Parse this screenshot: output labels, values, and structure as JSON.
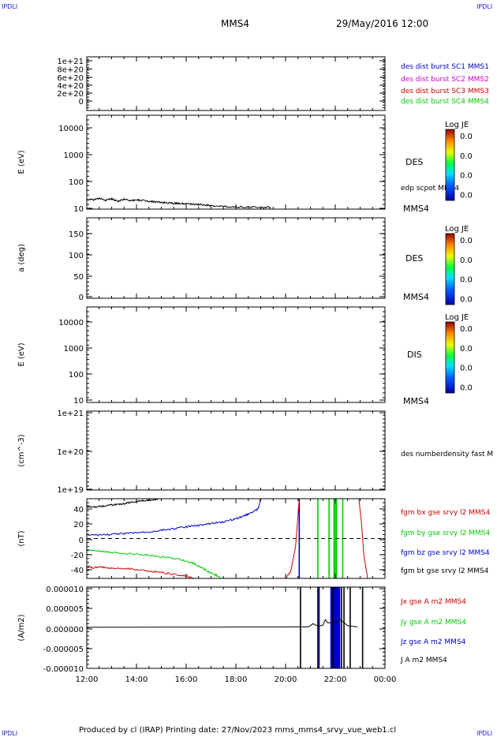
{
  "corners": {
    "tl": "IPDLI",
    "tr": "IPDLI",
    "bl": "IPDLI",
    "br": "IPDLI"
  },
  "header": {
    "spacecraft": "MMS4",
    "datetime": "29/May/2016 12:00"
  },
  "footer": {
    "text": "Produced by cl (IRAP)   Printing date: 27/Nov/2023   mms_mms4_srvy_vue_web1.cl"
  },
  "colors": {
    "black": "#000000",
    "blue": "#0000cc",
    "magenta": "#cc00cc",
    "red": "#cc0000",
    "green": "#00cc00"
  },
  "chart_data": [
    {
      "id": "p1",
      "type": "line",
      "yticks": [
        "1e+21",
        "8e+20",
        "6e+20",
        "4e+20",
        "2e+20",
        "0"
      ],
      "ylim": [
        0,
        1e+21
      ],
      "legend": [
        {
          "text": "des dist burst SC1 MMS1",
          "color": "#0000cc"
        },
        {
          "text": "des dist burst SC2 MMS2",
          "color": "#cc00cc"
        },
        {
          "text": "des dist burst SC3 MMS3",
          "color": "#cc0000"
        },
        {
          "text": "des dist burst SC4 MMS4",
          "color": "#00cc00"
        }
      ],
      "zero_line": true
    },
    {
      "id": "p2",
      "type": "heatmap",
      "ylabel": "E (eV)",
      "scale": "log",
      "ylim": [
        10,
        20000
      ],
      "yticks": [
        "10000",
        "1000",
        "100",
        "10"
      ],
      "name": "DES",
      "overlay_label": "edp scpot MMS4",
      "sc_label": "MMS4",
      "colorbar": {
        "title": "Log JE",
        "values": [
          "0.0",
          "0.0",
          "0.0",
          "0.0"
        ]
      },
      "series": [
        {
          "name": "edp scpot MMS4",
          "color": "#000000",
          "x": [
            12.0,
            12.25,
            12.5,
            12.75,
            13.0,
            13.25,
            13.5,
            13.75,
            14.0,
            14.25,
            14.5,
            14.75,
            15.0,
            15.25,
            15.5,
            15.75,
            16.0,
            16.25,
            16.5,
            16.75,
            17.0,
            17.5,
            18.0,
            18.5,
            19.0,
            19.4
          ],
          "y": [
            22,
            21,
            24,
            20,
            23,
            19,
            22,
            20,
            21,
            20,
            19,
            18,
            17,
            16.5,
            16,
            16,
            15.5,
            15,
            14.5,
            14,
            13,
            12.5,
            12,
            11.8,
            11.5,
            11.5
          ]
        }
      ]
    },
    {
      "id": "p3",
      "type": "heatmap",
      "ylabel": "a (deg)",
      "ylim": [
        0,
        180
      ],
      "yticks": [
        "150",
        "100",
        "50",
        "0"
      ],
      "name": "DES",
      "sc_label": "MMS4",
      "colorbar": {
        "title": "Log JE",
        "values": [
          "0.0",
          "0.0",
          "0.0",
          "0.0"
        ]
      }
    },
    {
      "id": "p4",
      "type": "heatmap",
      "ylabel": "E (eV)",
      "scale": "log",
      "ylim": [
        10,
        20000
      ],
      "yticks": [
        "10000",
        "1000",
        "100",
        "10"
      ],
      "name": "DIS",
      "sc_label": "MMS4",
      "colorbar": {
        "title": "Log JE",
        "values": [
          "0.0",
          "0.0",
          "0.0",
          "0.0"
        ]
      }
    },
    {
      "id": "p5",
      "type": "line",
      "ylabel": "(cm^-3)",
      "scale": "log",
      "ylim": [
        1e+19,
        1e+21
      ],
      "yticks": [
        "1e+21",
        "1e+20",
        "1e+19"
      ],
      "legend": [
        {
          "text": "des numberdensity fast M",
          "color": "#000000"
        }
      ]
    },
    {
      "id": "p6",
      "type": "line",
      "ylabel": "(nT)",
      "ylim": [
        -48,
        48
      ],
      "yticks": [
        "40",
        "20",
        "0",
        "-20",
        "-40"
      ],
      "zero_line": true,
      "legend": [
        {
          "text": "fgm bx gse srvy l2 MMS4",
          "color": "#cc0000"
        },
        {
          "text": "fgm by gse srvy l2 MMS4",
          "color": "#00cc00"
        },
        {
          "text": "fgm bz gse srvy l2 MMS4",
          "color": "#0000cc"
        },
        {
          "text": "fgm bt gse srvy l2 MMS4",
          "color": "#000000"
        }
      ],
      "series": [
        {
          "name": "fgm bt gse srvy l2 MMS4",
          "color": "#000000",
          "x": [
            12.0,
            12.3,
            12.6,
            12.9,
            13.2,
            13.5,
            13.8,
            14.1,
            14.4,
            14.7,
            14.9
          ],
          "y": [
            39,
            38,
            39,
            40,
            41,
            42,
            44,
            45,
            46,
            47,
            48
          ]
        },
        {
          "name": "fgm bz gse srvy l2 MMS4",
          "color": "#0000cc",
          "x": [
            12.0,
            12.5,
            13.0,
            13.5,
            14.0,
            14.5,
            15.0,
            15.5,
            16.0,
            16.5,
            17.0,
            17.5,
            18.0,
            18.3,
            18.6,
            18.9,
            19.0
          ],
          "y": [
            4,
            4.5,
            5,
            6,
            7,
            8,
            10,
            12,
            14,
            16,
            18,
            20,
            24,
            27,
            31,
            36,
            48
          ]
        },
        {
          "name": "fgm by gse srvy l2 MMS4",
          "color": "#00cc00",
          "x": [
            12.0,
            12.5,
            13.0,
            13.5,
            14.0,
            14.5,
            15.0,
            15.5,
            16.0,
            16.3,
            16.6,
            16.9,
            17.2,
            17.4
          ],
          "y": [
            -14,
            -15,
            -17,
            -18,
            -19,
            -20,
            -22,
            -24,
            -27,
            -30,
            -35,
            -40,
            -44,
            -48
          ]
        },
        {
          "name": "fgm bx gse srvy l2 MMS4",
          "color": "#cc0000",
          "x": [
            12.0,
            12.3,
            12.6,
            13.0,
            13.5,
            14.0,
            14.5,
            15.0,
            15.5,
            16.0,
            16.3
          ],
          "y": [
            -34,
            -35,
            -34,
            -36,
            -36,
            -37,
            -39,
            -41,
            -43,
            -45,
            -48
          ]
        },
        {
          "name": "fgm bx gse srvy l2 MMS4",
          "color": "#cc0000",
          "x": [
            20.0,
            20.2,
            20.4,
            20.55
          ],
          "y": [
            -48,
            -40,
            -10,
            48
          ]
        },
        {
          "name": "fgm bx gse srvy l2 MMS4",
          "color": "#cc0000",
          "x": [
            22.95,
            23.05,
            23.15,
            23.3
          ],
          "y": [
            48,
            20,
            -20,
            -48
          ]
        }
      ],
      "spikes": [
        {
          "x": 20.55,
          "color": "#0000cc"
        },
        {
          "x": 21.3,
          "color": "#00cc00"
        },
        {
          "x": 21.75,
          "color": "#00cc00"
        },
        {
          "x": 21.95,
          "color": "#00cc00"
        },
        {
          "x": 22.0,
          "color": "#00cc00"
        },
        {
          "x": 22.05,
          "color": "#00cc00"
        },
        {
          "x": 22.3,
          "color": "#00cc00"
        }
      ]
    },
    {
      "id": "p7",
      "type": "line",
      "ylabel": "(A/m2)",
      "ylim": [
        -1e-05,
        1e-05
      ],
      "yticks": [
        "0.000010",
        "0.000005",
        "0.000000",
        "-0.000005",
        "-0.000010"
      ],
      "xticks": [
        "12:00",
        "14:00",
        "16:00",
        "18:00",
        "20:00",
        "22:00",
        "00:00"
      ],
      "xlim": [
        12,
        24
      ],
      "legend": [
        {
          "text": "Jx gse A m2 MMS4",
          "color": "#cc0000"
        },
        {
          "text": "Jy gse A m2 MMS4",
          "color": "#00cc00"
        },
        {
          "text": "Jz gse A m2 MMS4",
          "color": "#0000cc"
        },
        {
          "text": "J A m2 MMS4",
          "color": "#000000"
        }
      ],
      "series": [
        {
          "name": "J A m2 MMS4",
          "color": "#000000",
          "x": [
            12.0,
            20.9,
            21.0,
            21.1,
            21.3,
            21.5,
            21.6,
            21.7,
            22.1,
            22.2,
            22.5,
            22.9
          ],
          "y": [
            1e-07,
            2e-07,
            5e-07,
            1e-06,
            4e-07,
            6e-07,
            2e-06,
            1.2e-06,
            1.4e-06,
            2e-06,
            5e-07,
            2e-07
          ]
        }
      ],
      "bands": [
        {
          "from": 21.8,
          "to": 22.2,
          "color": "#0000cc"
        }
      ],
      "spikes": [
        {
          "x": 20.6,
          "color": "#000000"
        },
        {
          "x": 21.3,
          "color": "#000000"
        },
        {
          "x": 21.35,
          "color": "#0000cc"
        },
        {
          "x": 21.9,
          "color": "#000000"
        },
        {
          "x": 22.25,
          "color": "#000000"
        },
        {
          "x": 22.35,
          "color": "#000000"
        },
        {
          "x": 22.6,
          "color": "#000000"
        },
        {
          "x": 23.1,
          "color": "#000000"
        }
      ]
    }
  ]
}
